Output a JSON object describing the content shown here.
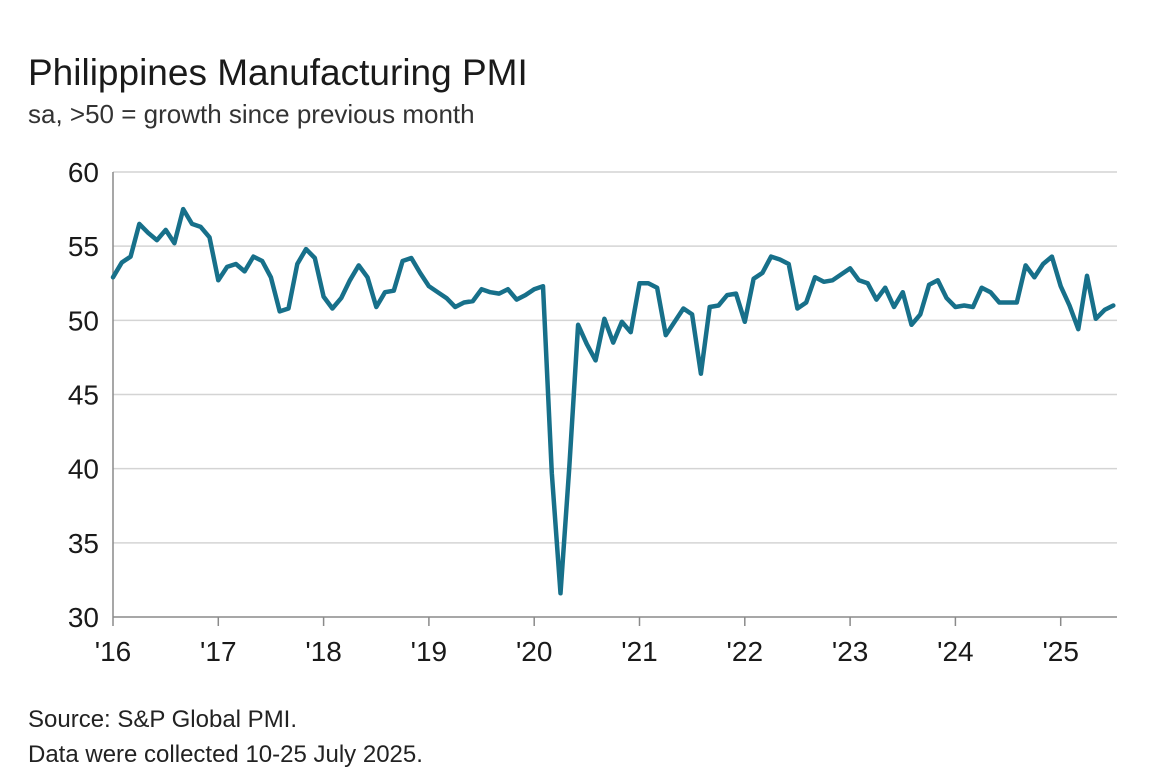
{
  "chart_data": {
    "type": "line",
    "title": "Philippines Manufacturing PMI",
    "subtitle": "sa, >50 = growth since previous month",
    "ylim": [
      30,
      60
    ],
    "yticks": [
      60,
      55,
      50,
      45,
      40,
      35,
      30
    ],
    "xticks": [
      {
        "label": "'16",
        "year": 2016
      },
      {
        "label": "'17",
        "year": 2017
      },
      {
        "label": "'18",
        "year": 2018
      },
      {
        "label": "'19",
        "year": 2019
      },
      {
        "label": "'20",
        "year": 2020
      },
      {
        "label": "'21",
        "year": 2021
      },
      {
        "label": "'22",
        "year": 2022
      },
      {
        "label": "'23",
        "year": 2023
      },
      {
        "label": "'24",
        "year": 2024
      },
      {
        "label": "'25",
        "year": 2025
      }
    ],
    "grid": true,
    "line_color": "#17708a",
    "series": [
      {
        "start": "2016-01",
        "values": [
          52.9,
          53.9,
          54.3,
          56.5,
          55.9,
          55.4,
          56.1,
          55.2,
          57.5,
          56.5,
          56.3,
          55.6,
          52.7,
          53.6,
          53.8,
          53.3,
          54.3,
          54.0,
          52.9,
          50.6,
          50.8,
          53.8,
          54.8,
          54.2,
          51.6,
          50.8,
          51.5,
          52.7,
          53.7,
          52.9,
          50.9,
          51.9,
          52.0,
          54.0,
          54.2,
          53.2,
          52.3,
          51.9,
          51.5,
          50.9,
          51.2,
          51.3,
          52.1,
          51.9,
          51.8,
          52.1,
          51.4,
          51.7,
          52.1,
          52.3,
          39.7,
          31.6,
          40.1,
          49.7,
          48.4,
          47.3,
          50.1,
          48.5,
          49.9,
          49.2,
          52.5,
          52.5,
          52.2,
          49.0,
          49.9,
          50.8,
          50.4,
          46.4,
          50.9,
          51.0,
          51.7,
          51.8,
          49.9,
          52.8,
          53.2,
          54.3,
          54.1,
          53.8,
          50.8,
          51.2,
          52.9,
          52.6,
          52.7,
          53.1,
          53.5,
          52.7,
          52.5,
          51.4,
          52.2,
          50.9,
          51.9,
          49.7,
          50.4,
          52.4,
          52.7,
          51.5,
          50.9,
          51.0,
          50.9,
          52.2,
          51.9,
          51.2,
          51.2,
          51.2,
          53.7,
          52.9,
          53.8,
          54.3,
          52.3,
          51.0,
          49.4,
          53.0,
          50.1,
          50.7,
          51.0
        ]
      }
    ]
  },
  "footer": {
    "source": "Source: S&P Global PMI.",
    "note": "Data were collected 10-25 July 2025."
  }
}
